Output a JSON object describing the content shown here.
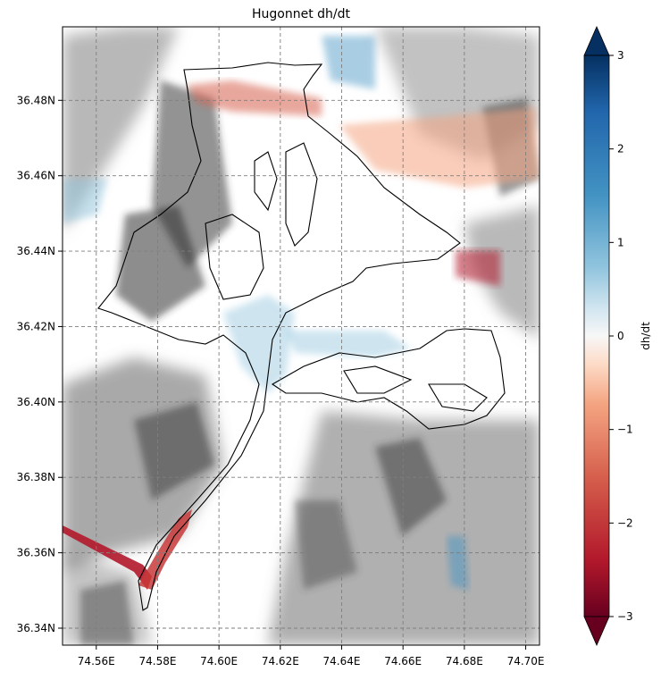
{
  "chart_data": {
    "type": "heatmap",
    "title": "Hugonnet dh/dt",
    "xlabel": "",
    "ylabel": "",
    "x_ticks": [
      "74.56E",
      "74.58E",
      "74.60E",
      "74.62E",
      "74.64E",
      "74.66E",
      "74.68E",
      "74.70E"
    ],
    "x_tick_values": [
      74.56,
      74.58,
      74.6,
      74.62,
      74.64,
      74.66,
      74.68,
      74.7
    ],
    "y_ticks": [
      "36.34N",
      "36.36N",
      "36.38N",
      "36.40N",
      "36.42N",
      "36.44N",
      "36.46N",
      "36.48N"
    ],
    "y_tick_values": [
      36.34,
      36.36,
      36.38,
      36.4,
      36.42,
      36.44,
      36.46,
      36.48
    ],
    "xlim": [
      74.549,
      74.7045
    ],
    "ylim": [
      36.3355,
      36.4995
    ],
    "grid": true,
    "background": "grayscale hillshade",
    "colormap": "RdBu",
    "colorbar": {
      "label": "dh/dt",
      "ticks": [
        "−3",
        "−2",
        "−1",
        "0",
        "1",
        "2",
        "3"
      ],
      "tick_values": [
        -3,
        -2,
        -1,
        0,
        1,
        2,
        3
      ],
      "range": [
        -3,
        3
      ],
      "extend": "both"
    },
    "outlines": "glacier outlines (black)",
    "colors": {
      "neg_max": "#67001f",
      "neg_mid": "#d6604d",
      "neutral": "#f7f7f7",
      "pos_mid": "#4393c3",
      "pos_max": "#053061"
    }
  }
}
